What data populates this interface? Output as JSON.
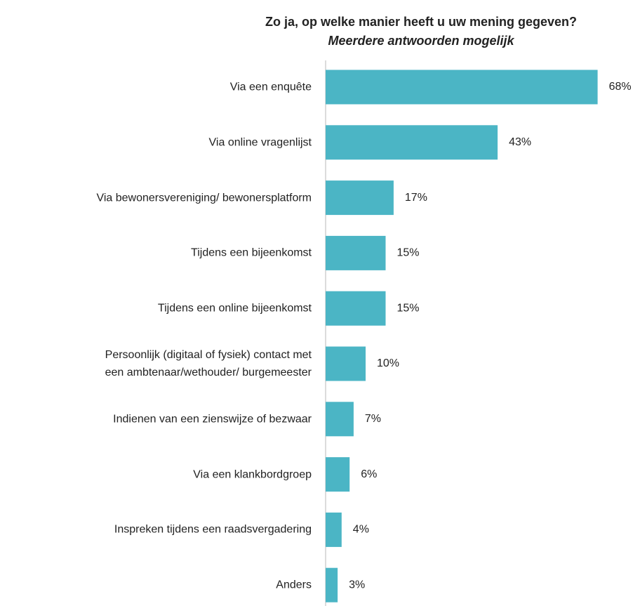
{
  "chart_data": {
    "type": "bar",
    "orientation": "horizontal",
    "title": "Zo ja, op welke manier heeft u uw mening gegeven?",
    "subtitle": "Meerdere antwoorden mogelijk",
    "categories": [
      "Via een enquête",
      "Via online vragenlijst",
      "Via bewonersvereniging/ bewonersplatform",
      "Tijdens een bijeenkomst",
      "Tijdens een online bijeenkomst",
      "Persoonlijk (digitaal of fysiek) contact met\neen ambtenaar/wethouder/ burgemeester",
      "Indienen van een zienswijze of bezwaar",
      "Via een klankbordgroep",
      "Inspreken tijdens een raadsvergadering",
      "Anders"
    ],
    "values": [
      68,
      43,
      17,
      15,
      15,
      10,
      7,
      6,
      4,
      3
    ],
    "value_labels": [
      "68%",
      "43%",
      "17%",
      "15%",
      "15%",
      "10%",
      "7%",
      "6%",
      "4%",
      "3%"
    ],
    "color": "#4bb5c5"
  }
}
